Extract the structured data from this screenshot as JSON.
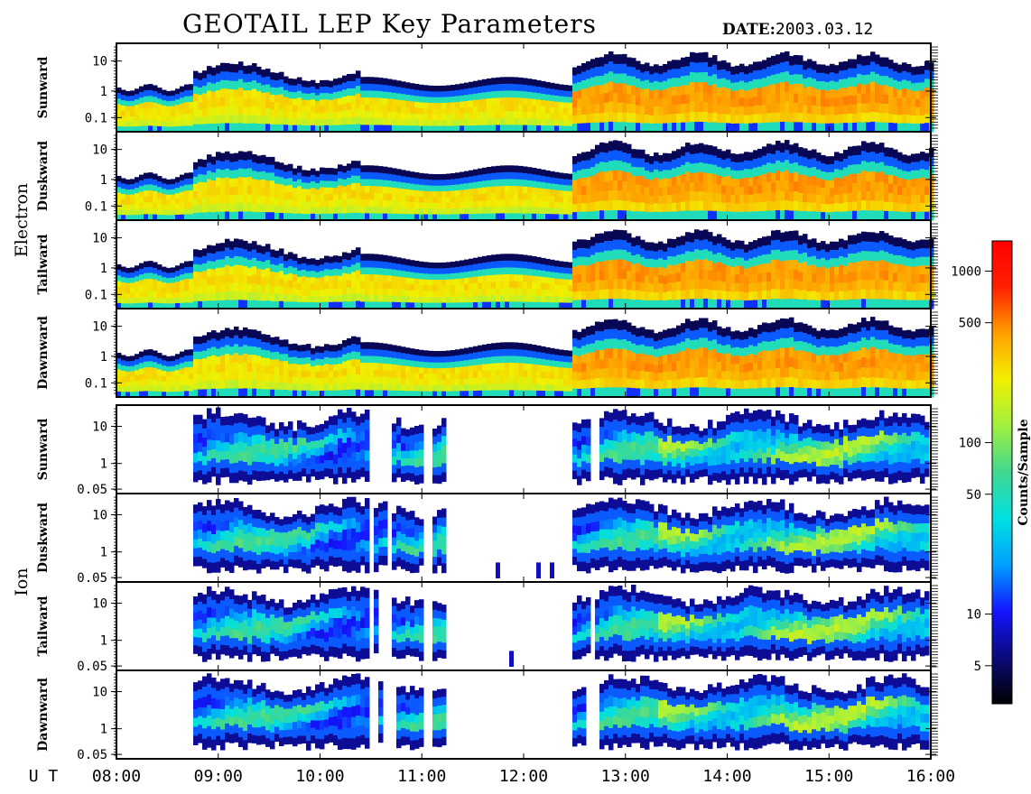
{
  "title": "GEOTAIL LEP Key Parameters",
  "date_label": "DATE:",
  "date_value": "2003.03.12",
  "colors": {
    "colorbar_stops": [
      "#000000",
      "#0a0a7a",
      "#1414ff",
      "#00a0ff",
      "#00e0e0",
      "#40d890",
      "#a0f040",
      "#f0f000",
      "#ffa000",
      "#ff2000",
      "#ff0000"
    ],
    "border": "#000000",
    "background": "#ffffff"
  },
  "chart_data": {
    "type": "heatmap",
    "x_axis": {
      "label": "U T",
      "range": [
        "08:00",
        "16:00"
      ],
      "ticks": [
        "08:00",
        "09:00",
        "10:00",
        "11:00",
        "12:00",
        "13:00",
        "14:00",
        "15:00",
        "16:00"
      ]
    },
    "groups": [
      {
        "name": "Electron",
        "y_scale": "log",
        "y_ticks": [
          "10",
          "1",
          "0.1"
        ],
        "panels": [
          "Sunward",
          "Duskward",
          "Tailward",
          "Dawnward"
        ]
      },
      {
        "name": "Ion",
        "y_scale": "log",
        "y_ticks": [
          "10",
          "1",
          "0.05"
        ],
        "panels": [
          "Sunward",
          "Duskward",
          "Tailward",
          "Dawnward"
        ]
      }
    ],
    "colorbar": {
      "label": "Counts/Sample",
      "scale": "log",
      "ticks": [
        "1000",
        "500",
        "100",
        "50",
        "10",
        "5"
      ]
    },
    "electron_activity_intervals": [
      "08:45",
      "12:30"
    ],
    "ion_activity_intervals": [
      [
        "08:45",
        "11:15"
      ],
      [
        "12:30",
        "16:00"
      ]
    ]
  }
}
